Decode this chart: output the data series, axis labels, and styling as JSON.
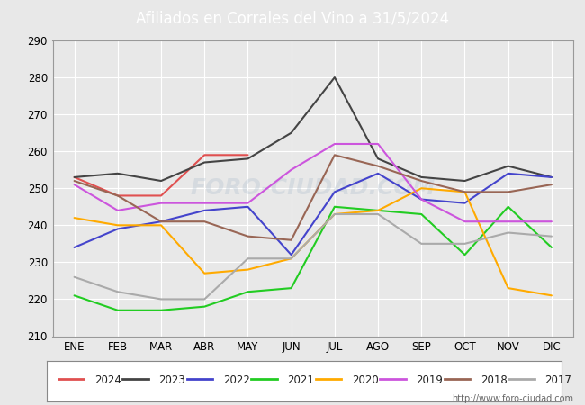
{
  "title": "Afiliados en Corrales del Vino a 31/5/2024",
  "months": [
    "ENE",
    "FEB",
    "MAR",
    "ABR",
    "MAY",
    "JUN",
    "JUL",
    "AGO",
    "SEP",
    "OCT",
    "NOV",
    "DIC"
  ],
  "ylim": [
    210,
    290
  ],
  "yticks": [
    210,
    220,
    230,
    240,
    250,
    260,
    270,
    280,
    290
  ],
  "series": {
    "2024": {
      "color": "#e05050",
      "data": [
        253,
        248,
        248,
        259,
        259,
        null,
        null,
        null,
        null,
        null,
        null,
        null
      ]
    },
    "2023": {
      "color": "#444444",
      "data": [
        253,
        254,
        252,
        257,
        258,
        265,
        280,
        258,
        253,
        252,
        256,
        253
      ]
    },
    "2022": {
      "color": "#4444cc",
      "data": [
        234,
        239,
        241,
        244,
        245,
        232,
        249,
        254,
        247,
        246,
        254,
        253
      ]
    },
    "2021": {
      "color": "#22cc22",
      "data": [
        221,
        217,
        217,
        218,
        222,
        223,
        245,
        244,
        243,
        232,
        245,
        234
      ]
    },
    "2020": {
      "color": "#ffaa00",
      "data": [
        242,
        240,
        240,
        227,
        228,
        231,
        243,
        244,
        250,
        249,
        223,
        221
      ]
    },
    "2019": {
      "color": "#cc55dd",
      "data": [
        251,
        244,
        246,
        246,
        246,
        255,
        262,
        262,
        247,
        241,
        241,
        241
      ]
    },
    "2018": {
      "color": "#996655",
      "data": [
        252,
        248,
        241,
        241,
        237,
        236,
        259,
        256,
        252,
        249,
        249,
        251
      ]
    },
    "2017": {
      "color": "#aaaaaa",
      "data": [
        226,
        222,
        220,
        220,
        231,
        231,
        243,
        243,
        235,
        235,
        238,
        237
      ]
    }
  },
  "watermark": "FORO-CIUDAD.COM",
  "url": "http://www.foro-ciudad.com",
  "fig_bg_color": "#e8e8e8",
  "plot_bg_color": "#e8e8e8",
  "title_bg_color": "#4da6d4",
  "title_text_color": "#ffffff",
  "grid_color": "#ffffff"
}
